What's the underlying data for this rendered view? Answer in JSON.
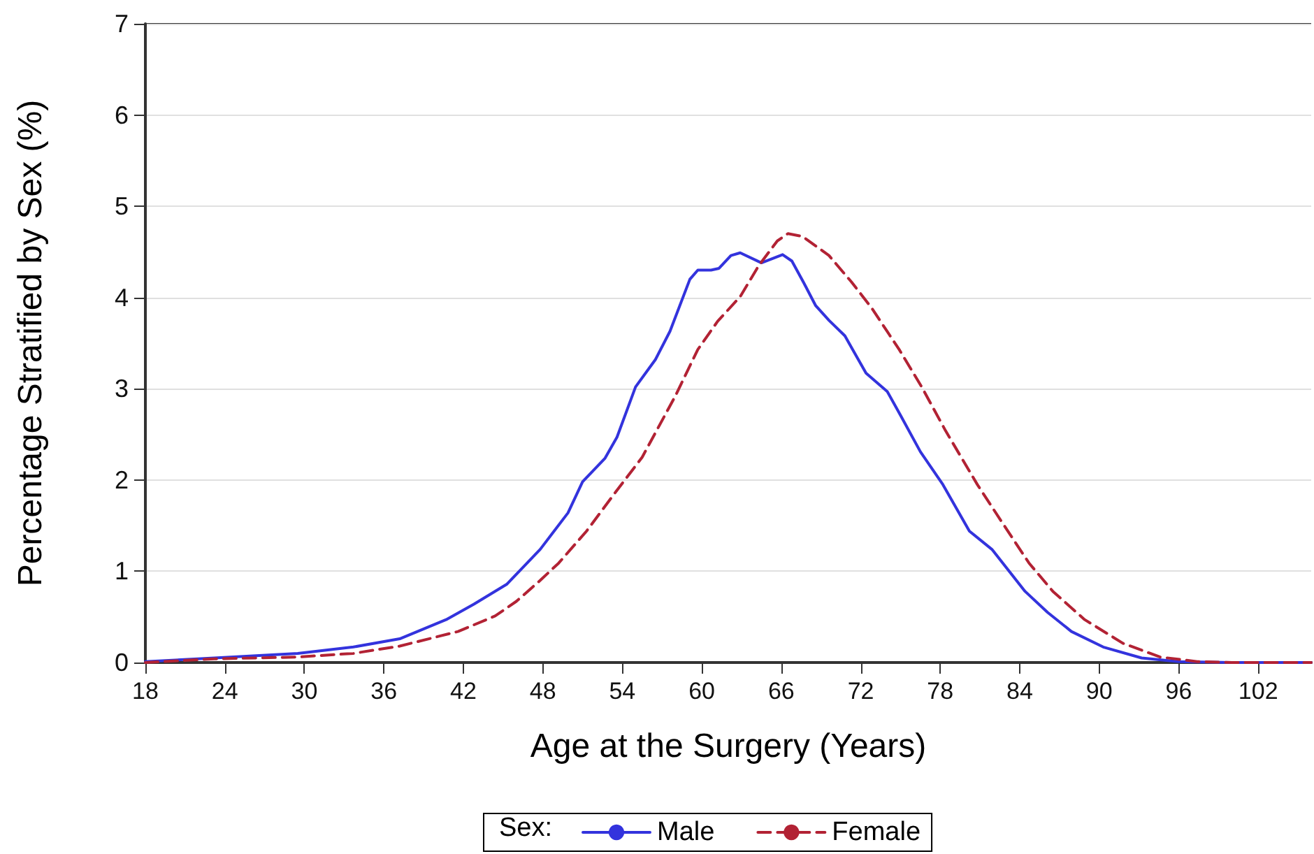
{
  "chart_data": {
    "type": "line",
    "xlabel": "Age at the Surgery (Years)",
    "ylabel": "Percentage Stratified by Sex (%)",
    "legend_title": "Sex:",
    "xlim": [
      18,
      106
    ],
    "xticks": [
      18,
      24,
      30,
      36,
      42,
      48,
      54,
      60,
      66,
      72,
      78,
      84,
      90,
      96,
      102
    ],
    "ylim": [
      0,
      7
    ],
    "yticks": [
      0,
      1,
      2,
      3,
      4,
      5,
      6,
      7
    ],
    "grid": "y",
    "legend": "bottom",
    "marker": "none",
    "series": [
      {
        "name": "Male",
        "color": "#3333dd",
        "line_style": "solid",
        "x": [
          18,
          23.2,
          29.5,
          33.7,
          37.2,
          40.7,
          42.8,
          45.3,
          47.8,
          49.9,
          51,
          52.7,
          53.6,
          55,
          56.5,
          57.6,
          59.1,
          59.7,
          60.7,
          61.3,
          62.2,
          62.9,
          64.5,
          66.1,
          66.8,
          67.7,
          68.6,
          69.6,
          70.8,
          72.4,
          74,
          75,
          76.5,
          78.2,
          80.2,
          81.9,
          84.4,
          86.1,
          87.9,
          90.3,
          93.2,
          96,
          100,
          106
        ],
        "values": [
          0.01,
          0.05,
          0.1,
          0.17,
          0.26,
          0.47,
          0.64,
          0.86,
          1.24,
          1.64,
          1.98,
          2.24,
          2.47,
          3.02,
          3.32,
          3.63,
          4.2,
          4.3,
          4.3,
          4.32,
          4.46,
          4.49,
          4.38,
          4.47,
          4.4,
          4.16,
          3.91,
          3.75,
          3.58,
          3.17,
          2.97,
          2.71,
          2.31,
          1.95,
          1.44,
          1.24,
          0.78,
          0.55,
          0.34,
          0.17,
          0.05,
          0.01,
          0,
          0
        ]
      },
      {
        "name": "Female",
        "color": "#b22234",
        "line_style": "dashed",
        "x": [
          18,
          23.2,
          29.5,
          33.7,
          37.2,
          41.6,
          44.4,
          46,
          47.8,
          49.2,
          51.3,
          53.4,
          55.5,
          58,
          59.7,
          61.2,
          62.9,
          64.3,
          65.7,
          66.5,
          67.6,
          69.6,
          71.3,
          72.8,
          74.9,
          76.6,
          78.4,
          80.8,
          82.6,
          84.7,
          86.5,
          88.9,
          91.8,
          94.6,
          97.4,
          100,
          106
        ],
        "values": [
          0,
          0.04,
          0.06,
          0.1,
          0.18,
          0.34,
          0.51,
          0.67,
          0.9,
          1.09,
          1.44,
          1.85,
          2.25,
          2.92,
          3.43,
          3.74,
          4.01,
          4.35,
          4.62,
          4.7,
          4.67,
          4.46,
          4.17,
          3.89,
          3.43,
          3.02,
          2.54,
          1.95,
          1.55,
          1.09,
          0.78,
          0.47,
          0.21,
          0.06,
          0.01,
          0,
          0
        ]
      }
    ]
  }
}
